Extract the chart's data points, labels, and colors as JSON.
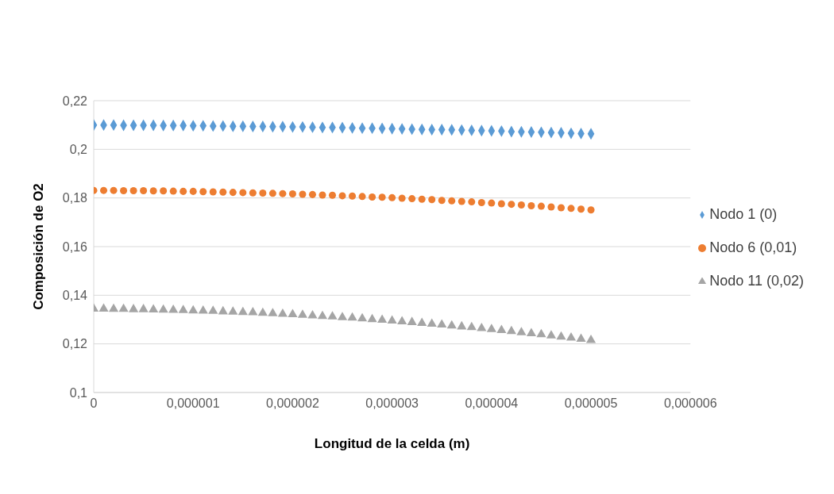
{
  "chart_data": {
    "type": "scatter",
    "xlabel": "Longitud de la celda (m)",
    "ylabel": "Composición de O2",
    "x": [
      0,
      1e-07,
      2e-07,
      3e-07,
      4e-07,
      5e-07,
      6e-07,
      7e-07,
      8e-07,
      9e-07,
      1e-06,
      1.1e-06,
      1.2e-06,
      1.3e-06,
      1.4e-06,
      1.5e-06,
      1.6e-06,
      1.7e-06,
      1.8e-06,
      1.9e-06,
      2e-06,
      2.1e-06,
      2.2e-06,
      2.3e-06,
      2.4e-06,
      2.5e-06,
      2.6e-06,
      2.7e-06,
      2.8e-06,
      2.9e-06,
      3e-06,
      3.1e-06,
      3.2e-06,
      3.3e-06,
      3.4e-06,
      3.5e-06,
      3.6e-06,
      3.7e-06,
      3.8e-06,
      3.9e-06,
      4e-06,
      4.1e-06,
      4.2e-06,
      4.3e-06,
      4.4e-06,
      4.5e-06,
      4.6e-06,
      4.7e-06,
      4.8e-06,
      4.9e-06,
      5e-06
    ],
    "series": [
      {
        "name": "Nodo 1 (0)",
        "color": "#5b9bd5",
        "marker": "diamond",
        "values": [
          0.21,
          0.21,
          0.21,
          0.2099,
          0.2099,
          0.2099,
          0.2099,
          0.2098,
          0.2098,
          0.2098,
          0.2097,
          0.2097,
          0.2096,
          0.2096,
          0.2095,
          0.2095,
          0.2094,
          0.2094,
          0.2093,
          0.2093,
          0.2092,
          0.2092,
          0.2091,
          0.209,
          0.209,
          0.2089,
          0.2088,
          0.2087,
          0.2087,
          0.2086,
          0.2085,
          0.2084,
          0.2083,
          0.2082,
          0.2081,
          0.2081,
          0.208,
          0.2079,
          0.2078,
          0.2077,
          0.2076,
          0.2075,
          0.2073,
          0.2072,
          0.2071,
          0.207,
          0.2069,
          0.2068,
          0.2066,
          0.2065,
          0.2064
        ]
      },
      {
        "name": "Nodo 6 (0,01)",
        "color": "#ed7d31",
        "marker": "circle",
        "values": [
          0.1831,
          0.1831,
          0.1831,
          0.183,
          0.183,
          0.183,
          0.1829,
          0.1829,
          0.1828,
          0.1827,
          0.1827,
          0.1826,
          0.1825,
          0.1824,
          0.1823,
          0.1822,
          0.1821,
          0.182,
          0.1819,
          0.1818,
          0.1817,
          0.1815,
          0.1814,
          0.1812,
          0.1811,
          0.1809,
          0.1808,
          0.1806,
          0.1804,
          0.1803,
          0.1801,
          0.1799,
          0.1797,
          0.1795,
          0.1793,
          0.179,
          0.1788,
          0.1786,
          0.1784,
          0.1781,
          0.1779,
          0.1776,
          0.1774,
          0.1771,
          0.1768,
          0.1766,
          0.1763,
          0.176,
          0.1757,
          0.1754,
          0.1751
        ]
      },
      {
        "name": "Nodo 11 (0,02)",
        "color": "#a5a5a5",
        "marker": "triangle",
        "values": [
          0.1344,
          0.1344,
          0.1343,
          0.1343,
          0.1342,
          0.1342,
          0.1341,
          0.134,
          0.1339,
          0.1338,
          0.1337,
          0.1336,
          0.1335,
          0.1333,
          0.1332,
          0.133,
          0.1329,
          0.1327,
          0.1325,
          0.1323,
          0.1321,
          0.1319,
          0.1316,
          0.1314,
          0.1312,
          0.1309,
          0.1307,
          0.1304,
          0.1301,
          0.1298,
          0.1295,
          0.1292,
          0.1289,
          0.1285,
          0.1282,
          0.1279,
          0.1275,
          0.1271,
          0.1268,
          0.1264,
          0.126,
          0.1256,
          0.1252,
          0.1247,
          0.1243,
          0.1239,
          0.1234,
          0.1229,
          0.1225,
          0.122,
          0.1215
        ]
      }
    ],
    "xlim": [
      0,
      6e-06
    ],
    "xticks": [
      0,
      {
        "value": 1e-06,
        "label": "0,000001"
      },
      {
        "value": 2e-06,
        "label": "0,000002"
      },
      {
        "value": 3e-06,
        "label": "0,000003"
      },
      {
        "value": 4e-06,
        "label": "0,000004"
      },
      {
        "value": 5e-06,
        "label": "0,000005"
      },
      {
        "value": 6e-06,
        "label": "0,000006"
      }
    ],
    "ylim": [
      0.1,
      0.22
    ],
    "yticks": [
      {
        "value": 0.1,
        "label": "0,1"
      },
      {
        "value": 0.12,
        "label": "0,12"
      },
      {
        "value": 0.14,
        "label": "0,14"
      },
      {
        "value": 0.16,
        "label": "0,16"
      },
      {
        "value": 0.18,
        "label": "0,18"
      },
      {
        "value": 0.2,
        "label": "0,2"
      },
      {
        "value": 0.22,
        "label": "0,22"
      }
    ],
    "grid": "y",
    "legend": "right"
  }
}
